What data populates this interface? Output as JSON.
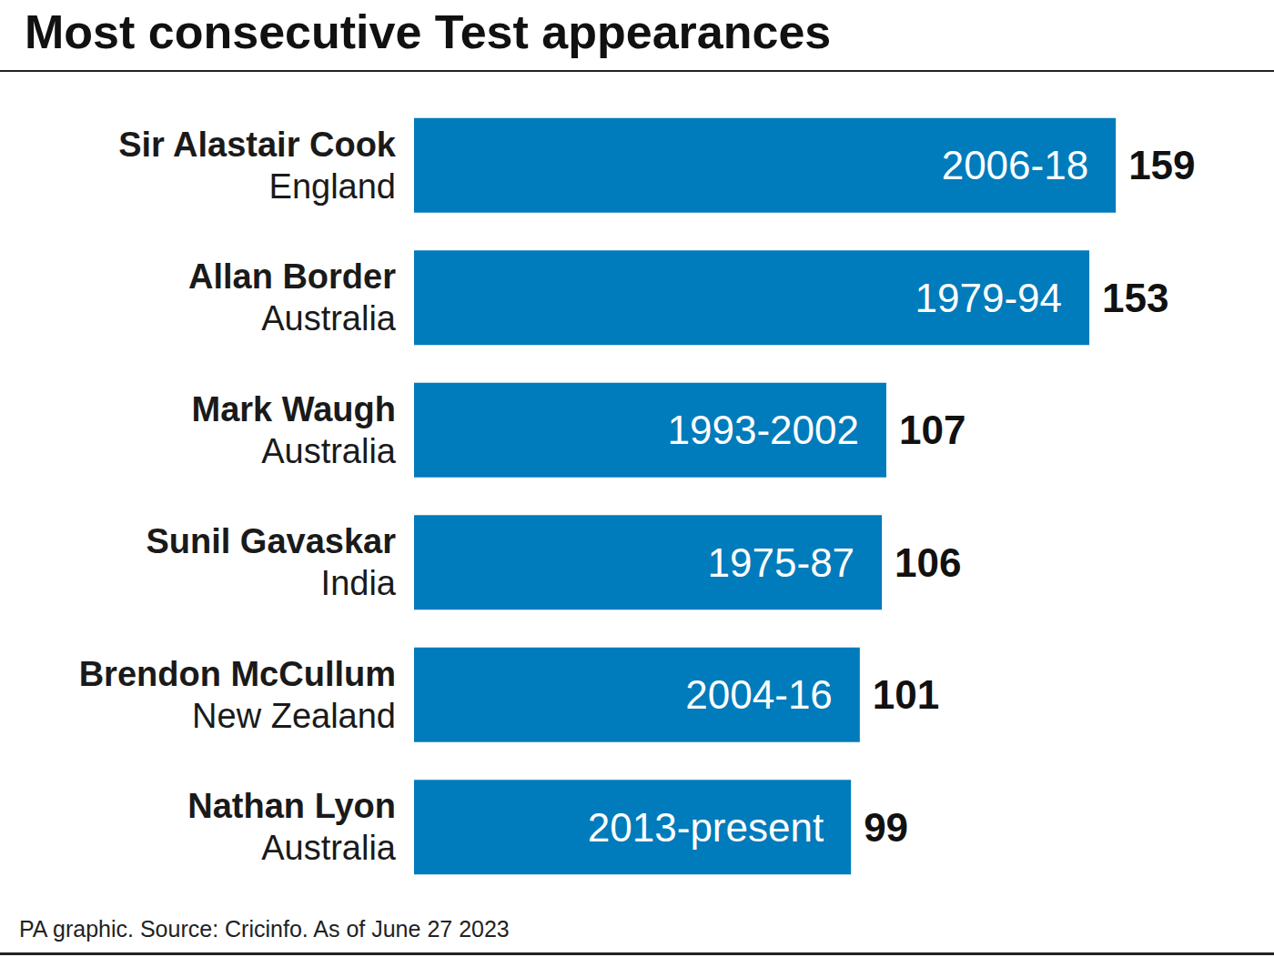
{
  "chart_data": {
    "type": "bar",
    "orientation": "horizontal",
    "title": "Most consecutive Test appearances",
    "source": "PA graphic. Source: Cricinfo. As of June 27 2023",
    "categories": [
      "Sir Alastair Cook",
      "Allan Border",
      "Mark Waugh",
      "Sunil Gavaskar",
      "Brendon McCullum",
      "Nathan Lyon"
    ],
    "countries": [
      "England",
      "Australia",
      "Australia",
      "India",
      "New Zealand",
      "Australia"
    ],
    "periods": [
      "2006-18",
      "1979-94",
      "1993-2002",
      "1975-87",
      "2004-16",
      "2013-present"
    ],
    "values": [
      159,
      153,
      107,
      106,
      101,
      99
    ],
    "color": "#007bbb",
    "xlim": [
      0,
      180
    ],
    "grid": false,
    "data_labels": true,
    "tick_labels": "y"
  }
}
